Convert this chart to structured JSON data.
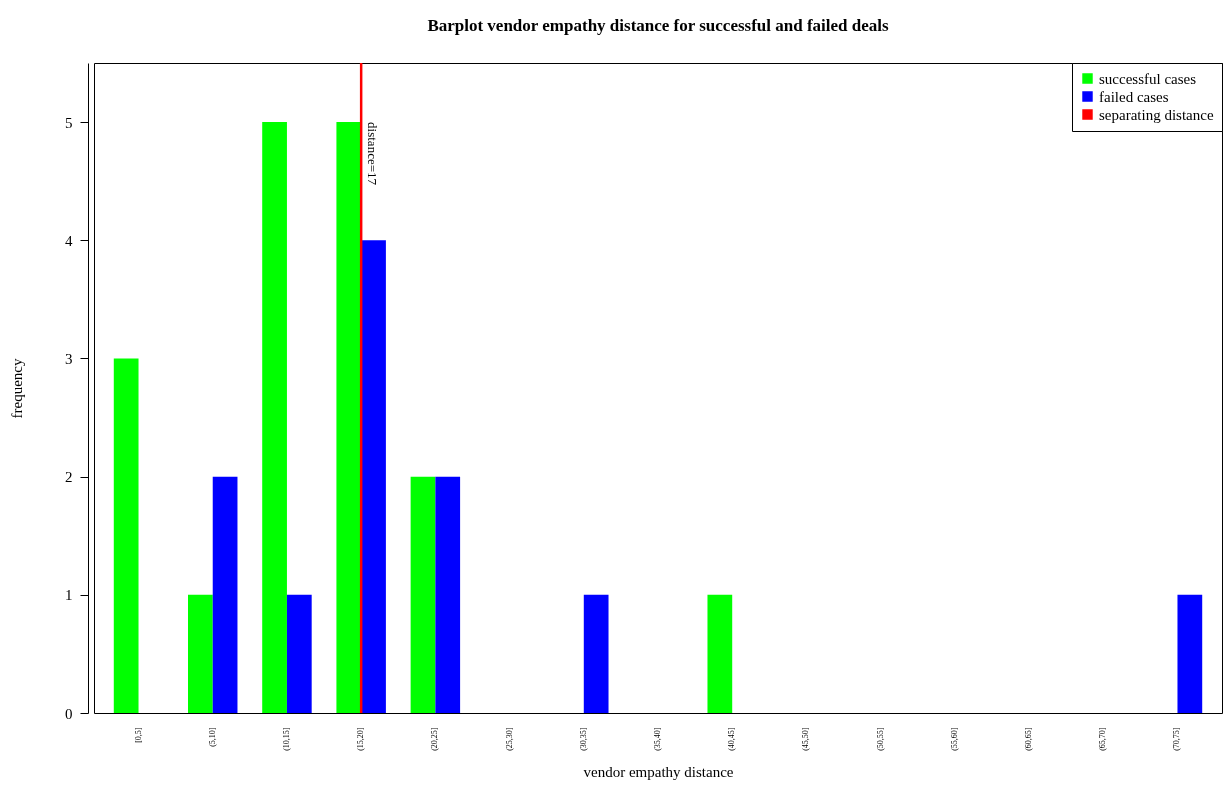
{
  "chart_data": {
    "type": "bar",
    "title": "Barplot vendor empathy distance for successful and failed deals",
    "xlabel": "vendor empathy distance",
    "ylabel": "frequency",
    "categories": [
      "[0,5]",
      "(5,10]",
      "(10,15]",
      "(15,20]",
      "(20,25]",
      "(25,30]",
      "(30,35]",
      "(35,40]",
      "(40,45]",
      "(45,50]",
      "(50,55]",
      "(55,60]",
      "(60,65]",
      "(65,70]",
      "(70,75]"
    ],
    "series": [
      {
        "name": "successful cases",
        "color": "#00ff00",
        "values": [
          3,
          1,
          5,
          5,
          2,
          0,
          0,
          0,
          1,
          0,
          0,
          0,
          0,
          0,
          0
        ]
      },
      {
        "name": "failed cases",
        "color": "#0000ff",
        "values": [
          0,
          2,
          1,
          4,
          2,
          0,
          1,
          0,
          0,
          0,
          0,
          0,
          0,
          0,
          1
        ]
      },
      {
        "name": "separating distance",
        "type": "line",
        "color": "#ff0000",
        "x": [
          "(15,20]",
          "(15,20]"
        ],
        "values": [
          0,
          5.5
        ]
      }
    ],
    "annotations": [
      {
        "text": "distance=17",
        "x": "(15,20]",
        "y": 5
      }
    ],
    "ylim": [
      0,
      5.5
    ],
    "yticks": [
      0,
      1,
      2,
      3,
      4,
      5
    ],
    "grid": false,
    "legend": "top right"
  }
}
